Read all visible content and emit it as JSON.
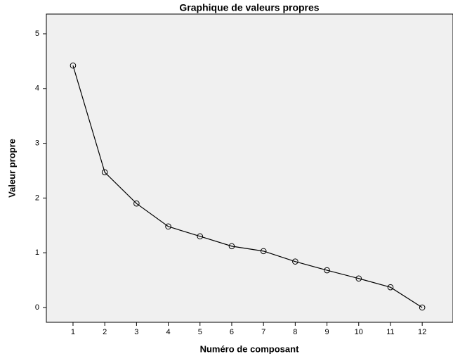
{
  "chart_data": {
    "type": "line",
    "title": "Graphique de valeurs propres",
    "xlabel": "Numéro de composant",
    "ylabel": "Valeur propre",
    "x": [
      1,
      2,
      3,
      4,
      5,
      6,
      7,
      8,
      9,
      10,
      11,
      12
    ],
    "series": [
      {
        "name": "Valeur propre",
        "color": "#000000",
        "values": [
          4.42,
          2.47,
          1.9,
          1.48,
          1.3,
          1.12,
          1.03,
          0.84,
          0.68,
          0.53,
          0.37,
          0.0
        ]
      }
    ],
    "xlim": [
      0.16,
      12.97
    ],
    "xticks": [
      1,
      2,
      3,
      4,
      5,
      6,
      7,
      8,
      9,
      10,
      11,
      12
    ],
    "ylim": [
      -0.27,
      5.36
    ],
    "yticks": [
      0,
      1,
      2,
      3,
      4,
      5
    ],
    "grid": false
  }
}
